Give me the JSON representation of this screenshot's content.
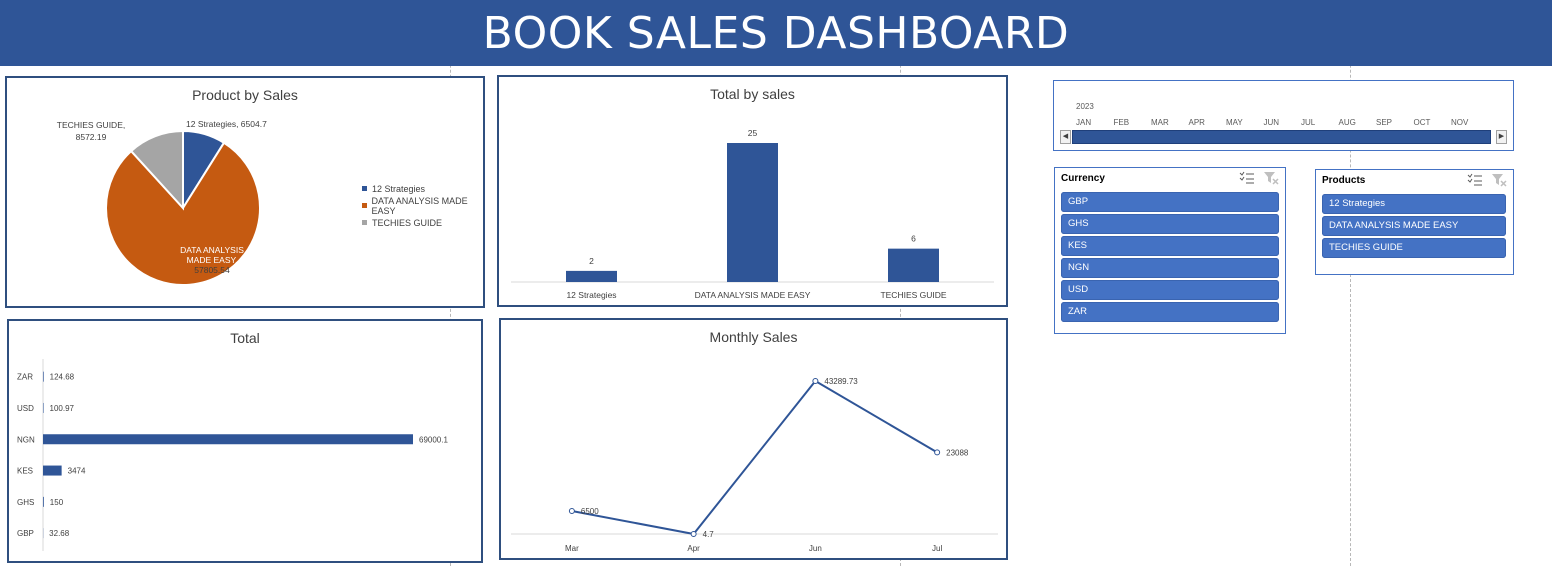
{
  "header": {
    "title": "BOOK SALES DASHBOARD"
  },
  "colors": {
    "banner": "#2f5597",
    "series_blue": "#2f5597",
    "series_orange": "#c55a11",
    "series_gray": "#a5a5a5",
    "slicer_item": "#4472c4"
  },
  "timeline": {
    "year": "2023",
    "months": [
      "JAN",
      "FEB",
      "MAR",
      "APR",
      "MAY",
      "JUN",
      "JUL",
      "AUG",
      "SEP",
      "OCT",
      "NOV"
    ],
    "left_arrow": "◀",
    "right_arrow": "▶"
  },
  "currency_slicer": {
    "title": "Currency",
    "icons": [
      "multi-select-icon",
      "clear-filter-icon"
    ],
    "items": [
      "GBP",
      "GHS",
      "KES",
      "NGN",
      "USD",
      "ZAR"
    ]
  },
  "products_slicer": {
    "title": "Products",
    "icons": [
      "multi-select-icon",
      "clear-filter-icon"
    ],
    "items": [
      "12 Strategies",
      "DATA ANALYSIS MADE EASY",
      "TECHIES GUIDE"
    ]
  },
  "chart_data": [
    {
      "type": "pie",
      "title": "Product by Sales",
      "categories": [
        "12 Strategies",
        "DATA ANALYSIS MADE EASY",
        "TECHIES GUIDE"
      ],
      "values": [
        6504.7,
        57805.54,
        8572.19
      ],
      "data_labels": [
        "12 Strategies, 6504.7",
        "DATA ANALYSIS MADE EASY, 57805.54",
        "TECHIES GUIDE, 8572.19"
      ],
      "colors": [
        "#2f5597",
        "#c55a11",
        "#a5a5a5"
      ],
      "legend": "right"
    },
    {
      "type": "bar",
      "title": "Total by sales",
      "categories": [
        "12 Strategies",
        "DATA ANALYSIS MADE EASY",
        "TECHIES GUIDE"
      ],
      "values": [
        2,
        25,
        6
      ],
      "ylim": [
        0,
        25
      ],
      "grid": false,
      "legend": "none"
    },
    {
      "type": "bar",
      "orientation": "horizontal",
      "title": "Total",
      "categories": [
        "ZAR",
        "USD",
        "NGN",
        "KES",
        "GHS",
        "GBP"
      ],
      "values": [
        124.68,
        100.97,
        69000.1,
        3474,
        150,
        32.68
      ],
      "xlim": [
        0,
        69000.1
      ],
      "grid": false,
      "legend": "none"
    },
    {
      "type": "line",
      "title": "Monthly Sales",
      "x": [
        "Mar",
        "Apr",
        "Jun",
        "Jul"
      ],
      "values": [
        6500,
        4.7,
        43289.73,
        23088
      ],
      "ylim": [
        0,
        43289.73
      ],
      "grid": false,
      "legend": "none"
    }
  ]
}
